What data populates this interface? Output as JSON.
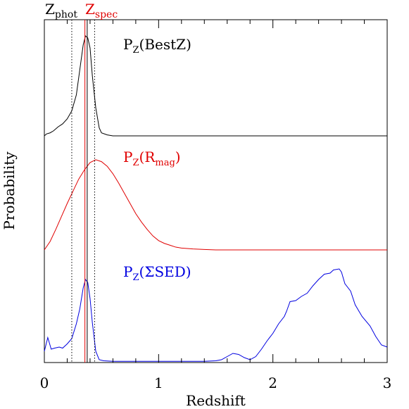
{
  "chart_data": {
    "type": "line",
    "xlabel": "Redshift",
    "ylabel": "Probability",
    "xlim": [
      0,
      3
    ],
    "grid": false,
    "x_ticks": [
      {
        "value": 0,
        "label": "0"
      },
      {
        "value": 1,
        "label": "1"
      },
      {
        "value": 2,
        "label": "2"
      },
      {
        "value": 3,
        "label": "3"
      }
    ],
    "top_labels": {
      "zphot": {
        "main": "Z",
        "sub": "phot",
        "color": "#000000"
      },
      "zspec": {
        "main": "Z",
        "sub": "spec",
        "color": "#e00000"
      }
    },
    "markers": {
      "zphot": 0.375,
      "zphot_range": [
        0.24,
        0.44
      ],
      "zspec": 0.355
    },
    "series": [
      {
        "name": "PZ(BestZ)",
        "label": {
          "prefix": "P",
          "sub": "Z",
          "open": "(",
          "main": "BestZ",
          "msub": "",
          "close": ")"
        },
        "color": "#000000",
        "baseline": 0.0,
        "x": [
          0,
          0.02,
          0.05,
          0.08,
          0.12,
          0.16,
          0.2,
          0.24,
          0.28,
          0.31,
          0.34,
          0.36,
          0.38,
          0.4,
          0.42,
          0.45,
          0.48,
          0.5,
          0.55,
          0.6,
          0.7,
          0.8,
          1.0,
          1.5,
          2.0,
          2.5,
          3.0
        ],
        "y": [
          0.0,
          0.02,
          0.03,
          0.05,
          0.09,
          0.12,
          0.17,
          0.25,
          0.41,
          0.66,
          0.91,
          1.0,
          0.98,
          0.88,
          0.6,
          0.28,
          0.08,
          0.03,
          0.01,
          0.0,
          0.0,
          0.0,
          0.0,
          0.0,
          0.0,
          0.0,
          0.0
        ]
      },
      {
        "name": "PZ(Rmag)",
        "label": {
          "prefix": "P",
          "sub": "Z",
          "open": "(",
          "main": "R",
          "msub": "mag",
          "close": ")"
        },
        "color": "#e00000",
        "baseline": 0.0,
        "x": [
          0,
          0.05,
          0.1,
          0.15,
          0.2,
          0.25,
          0.3,
          0.35,
          0.4,
          0.45,
          0.5,
          0.55,
          0.6,
          0.65,
          0.7,
          0.75,
          0.8,
          0.85,
          0.9,
          0.95,
          1.0,
          1.05,
          1.1,
          1.15,
          1.2,
          1.3,
          1.4,
          1.5,
          1.6,
          1.8,
          2.0,
          2.5,
          3.0
        ],
        "y": [
          0.0,
          0.09,
          0.22,
          0.36,
          0.5,
          0.63,
          0.76,
          0.86,
          0.94,
          0.97,
          0.95,
          0.9,
          0.82,
          0.72,
          0.61,
          0.5,
          0.39,
          0.3,
          0.22,
          0.15,
          0.1,
          0.07,
          0.05,
          0.03,
          0.02,
          0.01,
          0.005,
          0.0,
          0.0,
          0.0,
          0.0,
          0.0,
          0.0
        ]
      },
      {
        "name": "PZ(ΣSED)",
        "label": {
          "prefix": "P",
          "sub": "Z",
          "open": "(",
          "main": "ΣSED",
          "msub": "",
          "close": ")"
        },
        "color": "#0000e0",
        "baseline": 0.0,
        "x": [
          0,
          0.03,
          0.06,
          0.09,
          0.13,
          0.16,
          0.2,
          0.24,
          0.28,
          0.31,
          0.34,
          0.36,
          0.38,
          0.4,
          0.42,
          0.45,
          0.48,
          0.52,
          0.6,
          0.8,
          1.0,
          1.2,
          1.4,
          1.5,
          1.55,
          1.6,
          1.65,
          1.7,
          1.75,
          1.8,
          1.85,
          1.9,
          1.95,
          2.0,
          2.05,
          2.1,
          2.12,
          2.15,
          2.2,
          2.25,
          2.3,
          2.35,
          2.4,
          2.45,
          2.5,
          2.53,
          2.58,
          2.6,
          2.63,
          2.68,
          2.72,
          2.78,
          2.85,
          2.9,
          2.95,
          3.0
        ],
        "y": [
          0.1,
          0.23,
          0.12,
          0.13,
          0.14,
          0.13,
          0.17,
          0.22,
          0.36,
          0.5,
          0.7,
          0.78,
          0.75,
          0.6,
          0.37,
          0.1,
          0.02,
          0.01,
          0.005,
          0.005,
          0.005,
          0.005,
          0.005,
          0.01,
          0.02,
          0.05,
          0.08,
          0.07,
          0.04,
          0.02,
          0.05,
          0.12,
          0.2,
          0.27,
          0.36,
          0.43,
          0.48,
          0.57,
          0.58,
          0.62,
          0.65,
          0.72,
          0.78,
          0.83,
          0.84,
          0.87,
          0.88,
          0.85,
          0.74,
          0.67,
          0.54,
          0.43,
          0.34,
          0.24,
          0.16,
          0.14
        ]
      }
    ]
  }
}
